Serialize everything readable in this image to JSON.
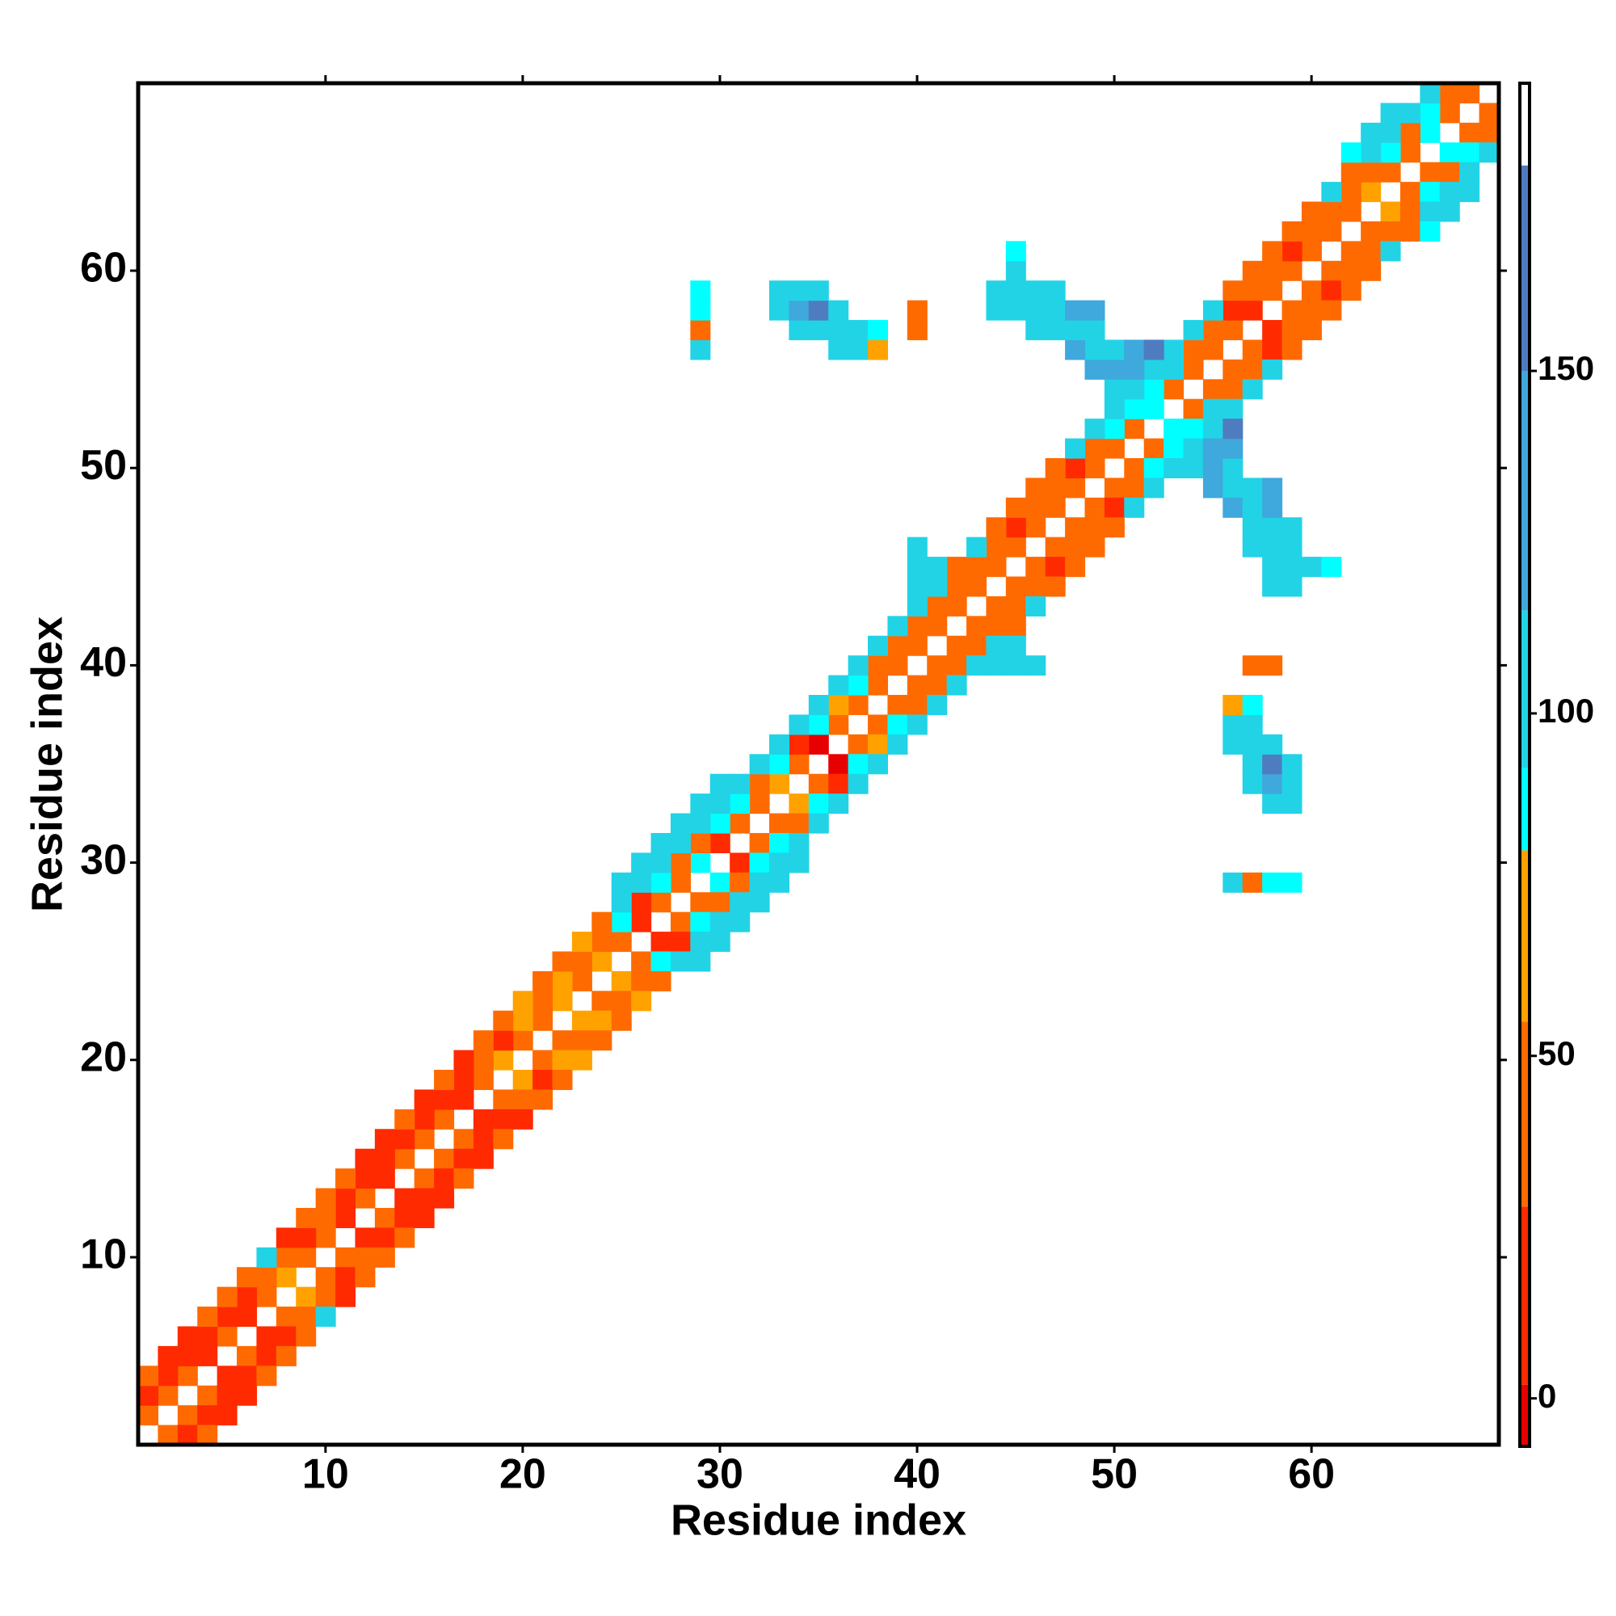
{
  "chart_data": {
    "type": "heatmap",
    "x_label": "Residue index",
    "y_label": "Residue index",
    "symmetric": true,
    "xlim": [
      0.5,
      69.5
    ],
    "ylim": [
      0.5,
      69.5
    ],
    "xticks": [
      10,
      20,
      30,
      40,
      50,
      60
    ],
    "yticks": [
      10,
      20,
      30,
      40,
      50,
      60
    ],
    "clim": [
      -7,
      192
    ],
    "cticks": [
      0,
      50,
      100,
      150
    ],
    "colorbounds": [
      2,
      28,
      55,
      80,
      92,
      115,
      150,
      180
    ],
    "colors": [
      "#e60000",
      "#ff2a00",
      "#ff6a00",
      "#ffa200",
      "#00ffff",
      "#22d3e6",
      "#3fa8dc",
      "#4f7cc0",
      "#ffffff"
    ],
    "x": [
      1,
      2,
      3,
      4,
      5,
      6,
      7,
      8,
      9,
      10,
      11,
      12,
      13,
      14,
      15,
      16,
      17,
      18,
      19,
      20,
      21,
      22,
      23,
      24,
      25,
      26,
      27,
      28,
      29,
      30,
      31,
      32,
      33,
      34,
      35,
      36,
      37,
      38,
      39,
      40,
      41,
      42,
      43,
      44,
      45,
      46,
      47,
      48,
      49,
      50,
      51,
      52,
      53,
      54,
      55,
      56,
      57,
      58,
      59,
      60,
      61,
      62,
      63,
      64,
      65,
      66,
      67,
      68,
      1,
      2,
      3,
      4,
      5,
      6,
      7,
      8,
      9,
      10,
      11,
      12,
      13,
      14,
      15,
      16,
      17,
      18,
      19,
      20,
      21,
      22,
      23,
      24,
      25,
      26,
      27,
      28,
      29,
      30,
      31,
      32,
      33,
      34,
      35,
      36,
      37,
      38,
      39,
      40,
      41,
      42,
      43,
      44,
      45,
      46,
      47,
      48,
      49,
      50,
      51,
      52,
      53,
      54,
      55,
      56,
      57,
      58,
      59,
      60,
      61,
      62,
      63,
      64,
      65,
      66,
      67,
      1,
      2,
      3,
      4,
      5,
      6,
      7,
      8,
      9,
      10,
      11,
      12,
      13,
      14,
      15,
      16,
      17,
      18,
      19,
      20,
      21,
      22,
      23,
      24,
      25,
      26,
      27,
      28,
      29,
      30,
      31,
      32,
      33,
      34,
      35,
      36,
      37,
      38,
      39,
      40,
      41,
      42,
      43,
      44,
      45,
      46,
      47,
      48,
      49,
      50,
      51,
      52,
      53,
      54,
      55,
      56,
      57,
      58,
      59,
      60,
      61,
      62,
      63,
      64,
      65,
      66,
      25,
      26,
      27,
      28,
      29,
      30,
      40,
      40,
      40,
      41,
      50,
      51,
      50,
      50,
      51,
      52,
      49,
      49,
      48,
      44,
      44,
      45,
      45,
      45,
      45,
      46,
      46,
      46,
      47,
      47,
      47,
      48,
      48,
      49,
      49,
      29,
      29,
      29,
      29,
      33,
      33,
      34,
      34,
      34,
      35,
      35,
      35,
      36,
      36,
      36,
      37,
      37,
      38,
      38,
      40,
      40,
      62,
      63,
      64
    ],
    "y": [
      2,
      3,
      4,
      5,
      6,
      7,
      8,
      9,
      10,
      11,
      12,
      13,
      14,
      15,
      16,
      17,
      18,
      19,
      20,
      21,
      22,
      23,
      24,
      25,
      26,
      27,
      28,
      29,
      30,
      31,
      32,
      33,
      34,
      35,
      36,
      37,
      38,
      39,
      40,
      41,
      42,
      43,
      44,
      45,
      46,
      47,
      48,
      49,
      50,
      51,
      52,
      53,
      54,
      55,
      56,
      57,
      58,
      59,
      60,
      61,
      62,
      63,
      64,
      65,
      66,
      67,
      68,
      69,
      3,
      4,
      5,
      6,
      7,
      8,
      9,
      10,
      11,
      12,
      13,
      14,
      15,
      16,
      17,
      18,
      19,
      20,
      21,
      22,
      23,
      24,
      25,
      26,
      27,
      28,
      29,
      30,
      31,
      32,
      33,
      34,
      35,
      36,
      37,
      38,
      39,
      40,
      41,
      42,
      43,
      44,
      45,
      46,
      47,
      48,
      49,
      50,
      51,
      52,
      53,
      54,
      55,
      56,
      57,
      58,
      59,
      60,
      61,
      62,
      63,
      64,
      65,
      66,
      67,
      68,
      69,
      4,
      5,
      6,
      7,
      8,
      9,
      10,
      11,
      12,
      13,
      14,
      15,
      16,
      17,
      18,
      19,
      20,
      21,
      22,
      23,
      24,
      25,
      26,
      27,
      28,
      29,
      30,
      31,
      32,
      33,
      34,
      35,
      36,
      37,
      38,
      39,
      40,
      41,
      42,
      43,
      44,
      45,
      46,
      47,
      48,
      49,
      50,
      51,
      52,
      53,
      54,
      55,
      56,
      57,
      58,
      59,
      60,
      61,
      62,
      63,
      64,
      65,
      66,
      67,
      68,
      69,
      29,
      30,
      31,
      32,
      33,
      34,
      44,
      45,
      46,
      45,
      54,
      55,
      55,
      56,
      56,
      56,
      55,
      56,
      56,
      58,
      59,
      58,
      59,
      60,
      61,
      57,
      58,
      59,
      57,
      58,
      59,
      57,
      58,
      57,
      58,
      56,
      57,
      58,
      59,
      58,
      59,
      57,
      58,
      59,
      57,
      58,
      59,
      56,
      57,
      58,
      56,
      57,
      56,
      57,
      57,
      58,
      66,
      67,
      68
    ],
    "values": [
      40,
      30,
      45,
      20,
      38,
      10,
      45,
      60,
      30,
      40,
      25,
      45,
      8,
      40,
      30,
      45,
      20,
      40,
      65,
      40,
      45,
      60,
      40,
      65,
      45,
      20,
      45,
      40,
      90,
      25,
      40,
      45,
      60,
      45,
      1,
      45,
      40,
      45,
      40,
      45,
      40,
      45,
      40,
      45,
      30,
      40,
      45,
      40,
      45,
      30,
      40,
      90,
      40,
      45,
      40,
      45,
      20,
      40,
      45,
      40,
      45,
      40,
      65,
      45,
      40,
      90,
      45,
      40,
      10,
      15,
      5,
      25,
      10,
      20,
      40,
      30,
      8,
      40,
      5,
      25,
      20,
      10,
      25,
      20,
      25,
      45,
      20,
      65,
      40,
      65,
      45,
      40,
      90,
      25,
      90,
      30,
      40,
      90,
      90,
      35,
      90,
      20,
      90,
      65,
      90,
      45,
      40,
      30,
      40,
      30,
      40,
      40,
      10,
      40,
      45,
      20,
      40,
      90,
      90,
      90,
      100,
      45,
      40,
      10,
      40,
      30,
      10,
      40,
      35,
      40,
      45,
      90,
      40,
      90,
      45,
      30,
      8,
      15,
      40,
      45,
      40,
      95,
      20,
      40,
      45,
      40,
      20,
      25,
      40,
      20,
      40,
      20,
      45,
      40,
      60,
      40,
      45,
      60,
      45,
      95,
      95,
      95,
      95,
      95,
      95,
      95,
      95,
      95,
      95,
      95,
      95,
      95,
      95,
      95,
      95,
      95,
      45,
      95,
      40,
      40,
      40,
      30,
      95,
      110,
      110,
      110,
      95,
      95,
      95,
      95,
      40,
      40,
      45,
      40,
      40,
      95,
      45,
      95,
      95,
      95,
      95,
      95,
      95,
      95,
      95,
      95,
      95,
      95,
      95,
      95,
      95,
      95,
      120,
      120,
      95,
      120,
      160,
      120,
      95,
      120,
      95,
      95,
      95,
      95,
      95,
      88,
      95,
      95,
      95,
      95,
      95,
      95,
      95,
      120,
      95,
      120,
      95,
      45,
      90,
      90,
      95,
      95,
      95,
      140,
      110,
      110,
      160,
      110,
      95,
      95,
      95,
      95,
      95,
      70,
      88,
      45,
      45,
      90,
      95,
      95
    ]
  }
}
